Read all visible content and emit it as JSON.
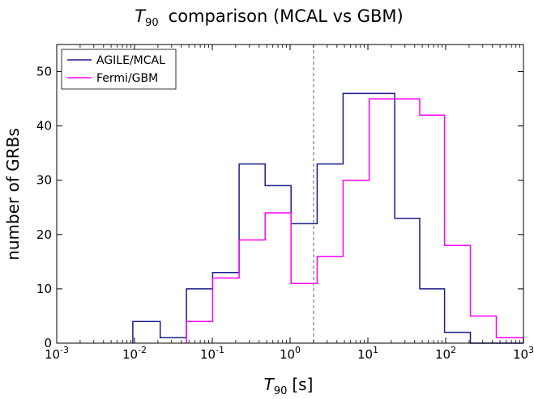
{
  "chart_data": {
    "type": "histogram",
    "title": {
      "symbol": "T",
      "subscript": "90",
      "text": "comparison (MCAL vs GBM)"
    },
    "xlabel": {
      "symbol": "T",
      "subscript": "90",
      "unit": "[s]"
    },
    "ylabel": "number of GRBs",
    "x_scale": "log",
    "xlim": [
      0.001,
      1000
    ],
    "ylim": [
      0,
      55
    ],
    "x_ticks": [
      {
        "value": 0.001,
        "base": "10",
        "exp": "-3"
      },
      {
        "value": 0.01,
        "base": "10",
        "exp": "-2"
      },
      {
        "value": 0.1,
        "base": "10",
        "exp": "-1"
      },
      {
        "value": 1,
        "base": "10",
        "exp": "0"
      },
      {
        "value": 10,
        "base": "10",
        "exp": "1"
      },
      {
        "value": 100,
        "base": "10",
        "exp": "2"
      },
      {
        "value": 1000,
        "base": "10",
        "exp": "3"
      }
    ],
    "y_ticks": [
      0,
      10,
      20,
      30,
      40,
      50
    ],
    "bin_edges": [
      0.00951,
      0.0214,
      0.0465,
      0.101,
      0.221,
      0.478,
      1.03,
      2.23,
      4.8,
      10.4,
      22.1,
      46.4,
      96.8,
      208,
      448,
      1000
    ],
    "series": [
      {
        "name": "AGILE/MCAL",
        "color": "#1c1c8c",
        "counts": [
          4,
          1,
          10,
          13,
          33,
          29,
          22,
          33,
          46,
          46,
          23,
          10,
          2,
          0,
          0
        ]
      },
      {
        "name": "Fermi/GBM",
        "color": "#ff00ff",
        "counts": [
          0,
          0,
          4,
          12,
          19,
          24,
          11,
          16,
          30,
          45,
          45,
          42,
          18,
          5,
          1
        ]
      }
    ],
    "vline": {
      "x": 2,
      "style": "dashed",
      "color": "#808080"
    },
    "legend_position": "top-left",
    "grid": false
  }
}
